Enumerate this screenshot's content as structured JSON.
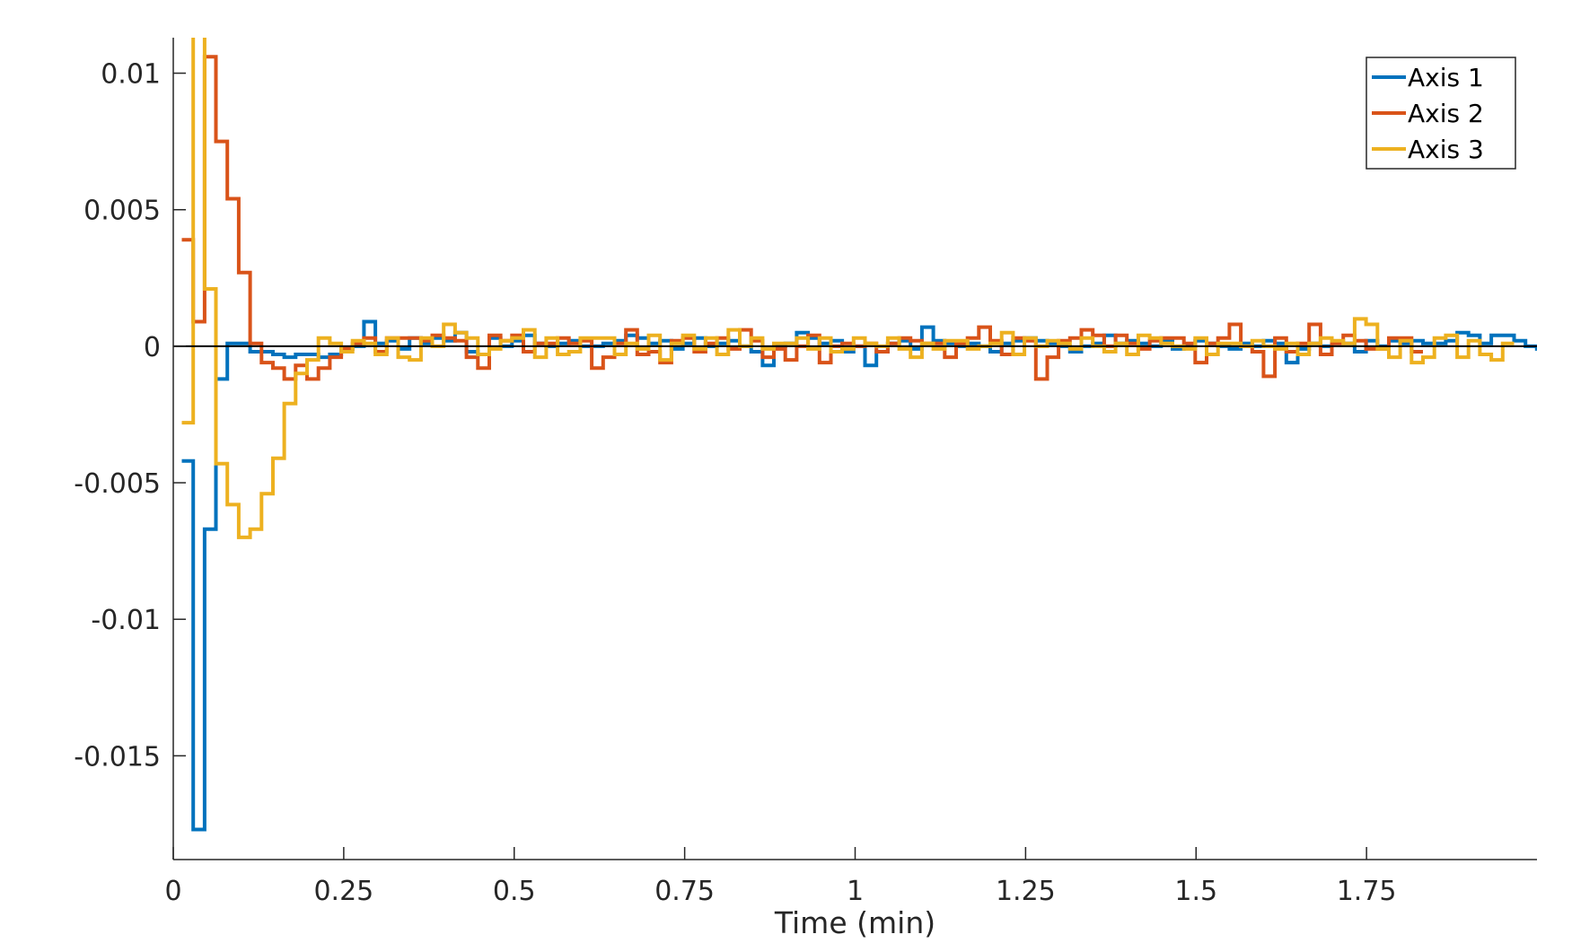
{
  "chart_data": {
    "type": "line",
    "step": true,
    "xlabel": "Time (min)",
    "ylabel": "",
    "xlim": [
      0,
      2.0
    ],
    "ylim": [
      -0.0188,
      0.0113
    ],
    "x_ticks": [
      0,
      0.25,
      0.5,
      0.75,
      1,
      1.25,
      1.5,
      1.75
    ],
    "x_tick_labels": [
      "0",
      "0.25",
      "0.5",
      "0.75",
      "1",
      "1.25",
      "1.5",
      "1.75"
    ],
    "y_ticks": [
      0.01,
      0.005,
      0,
      -0.005,
      -0.01,
      -0.015
    ],
    "y_tick_labels": [
      "0.01",
      "0.005",
      "0",
      "-0.005",
      "-0.01",
      "-0.015"
    ],
    "grid": false,
    "zero_line": true,
    "legend_position": "top-right",
    "x_start": 0.0125,
    "x_step": 0.0167,
    "series": [
      {
        "name": "Axis 1",
        "color": "#0072BD",
        "values": [
          -0.0042,
          -0.0177,
          -0.0067,
          -0.0012,
          0.0001,
          0.0001,
          -0.0002,
          -0.0002,
          -0.0003,
          -0.0004,
          -0.0003,
          -0.0003,
          -0.0004,
          -0.0003,
          -0.0001,
          0.0,
          0.0009,
          0.0001,
          0.0002,
          -0.0001,
          0.0003,
          0.0001,
          0.0003,
          0.0002,
          0.0005,
          -0.0002,
          -0.0003,
          0.0003,
          0.0,
          0.0002,
          0.0004,
          0.0001,
          0.0,
          0.0001,
          0.0002,
          0.0,
          0.0,
          0.0001,
          0.0002,
          0.0004,
          0.0003,
          0.0001,
          0.0002,
          -0.0001,
          0.0001,
          0.0003,
          0.0,
          0.0001,
          0.0002,
          0.0,
          -0.0002,
          -0.0007,
          0.0,
          0.0001,
          0.0005,
          0.0003,
          0.0001,
          0.0002,
          -0.0002,
          0.0,
          -0.0007,
          -0.0002,
          0.0001,
          0.0002,
          -0.0001,
          0.0007,
          0.0002,
          0.0001,
          0.0,
          0.0001,
          0.0,
          -0.0002,
          0.0001,
          0.0002,
          0.0003,
          0.0002,
          0.0001,
          0.0,
          -0.0002,
          0.0,
          0.0001,
          0.0004,
          0.0001,
          0.0002,
          0.0001,
          0.0,
          0.0002,
          -0.0001,
          0.0,
          0.0002,
          0.0001,
          0.0,
          -0.0001,
          0.0001,
          0.0,
          0.0002,
          0.0001,
          -0.0006,
          -0.0001,
          0.0001,
          0.0,
          0.0001,
          0.0001,
          -0.0002,
          0.0002,
          0.0,
          0.0002,
          0.0001,
          0.0002,
          0.0001,
          0.0001,
          0.0002,
          0.0005,
          0.0004,
          0.0001,
          0.0004,
          0.0004,
          0.0002,
          0.0,
          -0.0001
        ]
      },
      {
        "name": "Axis 2",
        "color": "#D95319",
        "values": [
          0.0039,
          0.0009,
          0.0106,
          0.0075,
          0.0054,
          0.0027,
          0.0001,
          -0.0006,
          -0.0008,
          -0.0012,
          -0.0007,
          -0.0012,
          -0.0008,
          -0.0004,
          -0.0001,
          0.0001,
          0.0003,
          -0.0002,
          0.0003,
          0.0003,
          0.0003,
          0.0002,
          0.0004,
          0.0003,
          0.0002,
          -0.0004,
          -0.0008,
          0.0004,
          0.0002,
          0.0004,
          -0.0002,
          0.0001,
          0.0001,
          0.0003,
          0.0001,
          0.0002,
          -0.0008,
          -0.0004,
          0.0001,
          0.0006,
          -0.0003,
          -0.0002,
          -0.0006,
          0.0002,
          0.0003,
          -0.0002,
          0.0001,
          0.0003,
          -0.0001,
          0.0006,
          0.0002,
          -0.0004,
          -0.0001,
          -0.0005,
          0.0,
          0.0004,
          -0.0006,
          0.0,
          0.0001,
          0.0,
          0.0001,
          -0.0002,
          0.0001,
          0.0003,
          0.0002,
          0.0001,
          0.0001,
          -0.0004,
          0.0001,
          0.0003,
          0.0007,
          0.0002,
          -0.0003,
          0.0003,
          0.0002,
          -0.0012,
          -0.0004,
          0.0002,
          0.0003,
          0.0006,
          0.0004,
          0.0,
          0.0004,
          0.0001,
          -0.0001,
          0.0002,
          0.0003,
          0.0003,
          0.0001,
          -0.0006,
          0.0001,
          0.0003,
          0.0008,
          0.0,
          -0.0002,
          -0.0011,
          0.0003,
          -0.0002,
          0.0001,
          0.0008,
          -0.0003,
          0.0001,
          0.0004,
          0.0002,
          -0.0001,
          -0.0001,
          0.0003,
          0.0003,
          -0.0002
        ]
      },
      {
        "name": "Axis 3",
        "color": "#EDB120",
        "values": [
          -0.0028,
          0.0114,
          0.0021,
          -0.0043,
          -0.0058,
          -0.007,
          -0.0067,
          -0.0054,
          -0.0041,
          -0.0021,
          -0.001,
          -0.0005,
          0.0003,
          0.0001,
          -0.0002,
          0.0002,
          0.0001,
          -0.0003,
          0.0003,
          -0.0004,
          -0.0005,
          0.0003,
          0.0,
          0.0008,
          0.0005,
          0.0003,
          -0.0003,
          -0.0001,
          0.0002,
          0.0003,
          0.0006,
          -0.0004,
          0.0003,
          -0.0003,
          -0.0002,
          0.0003,
          0.0003,
          0.0003,
          -0.0003,
          0.0001,
          -0.0001,
          0.0004,
          -0.0005,
          0.0001,
          0.0004,
          -0.0001,
          0.0003,
          -0.0003,
          0.0006,
          0.0,
          0.0003,
          -0.0001,
          0.0001,
          0.0001,
          0.0003,
          -0.0001,
          0.0003,
          -0.0002,
          -0.0001,
          0.0003,
          0.0001,
          0.0,
          0.0003,
          -0.0001,
          -0.0004,
          0.0001,
          -0.0001,
          0.0002,
          0.0002,
          -0.0001,
          0.0,
          0.0001,
          0.0005,
          -0.0003,
          0.0003,
          0.0,
          0.0002,
          0.0001,
          -0.0001,
          0.0003,
          0.0,
          -0.0002,
          0.0001,
          -0.0003,
          0.0004,
          0.0003,
          0.0001,
          0.0,
          -0.0001,
          0.0003,
          -0.0003,
          0.0001,
          0.0001,
          0.0,
          0.0002,
          0.0,
          -0.0001,
          0.0001,
          -0.0003,
          0.0001,
          0.0003,
          0.0002,
          0.0001,
          0.001,
          0.0008,
          -0.0001,
          -0.0004,
          0.0002,
          -0.0006,
          -0.0004,
          0.0003,
          0.0004,
          -0.0004,
          0.0002,
          -0.0003,
          -0.0005,
          0.0001
        ]
      }
    ]
  }
}
